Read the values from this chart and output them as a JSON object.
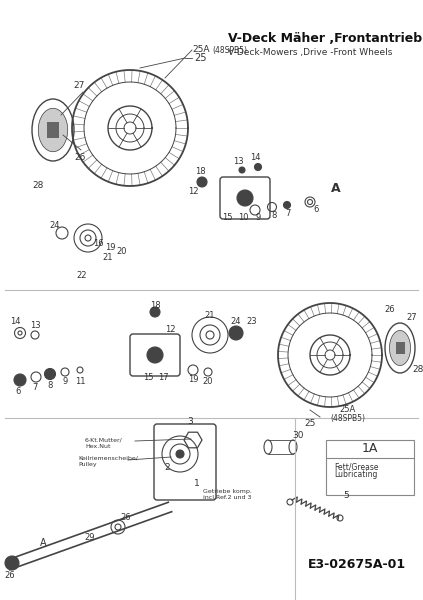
{
  "title_de": "V-Deck Mäher ,Frontantrieb",
  "title_en": "V-Deck-Mowers ,Drive -Front Wheels",
  "part_code": "E3-02675A-01",
  "bg_color": "#ffffff",
  "lc": "#444444",
  "tc": "#333333"
}
